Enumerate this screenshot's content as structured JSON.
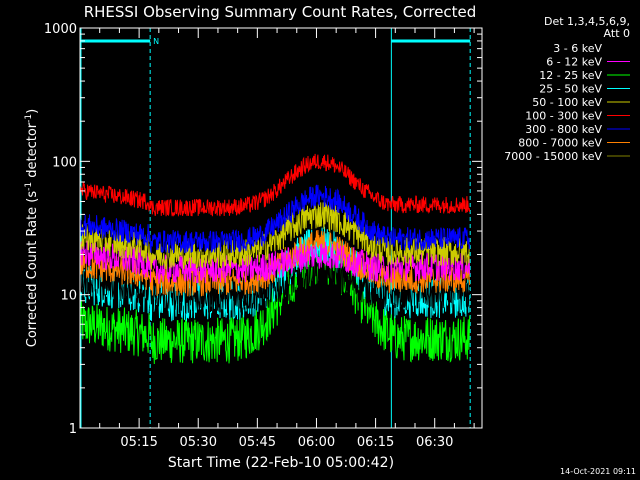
{
  "chart_data": {
    "type": "line",
    "title": "RHESSI Observing Summary Count Rates, Corrected",
    "xlabel": "Start Time (22-Feb-10 05:00:42)",
    "ylabel_main": "Corrected Count Rate (s",
    "ylabel_sup1": "-1",
    "ylabel_mid": " detector",
    "ylabel_sup2": "-1",
    "ylabel_end": ")",
    "yscale": "log",
    "ylim": [
      1,
      1000
    ],
    "xlim_minutes": [
      0,
      102
    ],
    "y_ticks": [
      {
        "v": 1,
        "label": "1"
      },
      {
        "v": 10,
        "label": "10"
      },
      {
        "v": 100,
        "label": "100"
      },
      {
        "v": 1000,
        "label": "1000"
      }
    ],
    "x_ticks": [
      {
        "t": 15,
        "label": "05:15"
      },
      {
        "t": 30,
        "label": "05:30"
      },
      {
        "t": 45,
        "label": "05:45"
      },
      {
        "t": 60,
        "label": "06:00"
      },
      {
        "t": 75,
        "label": "06:15"
      },
      {
        "t": 90,
        "label": "06:30"
      }
    ],
    "legend_header": [
      "Det 1,3,4,5,6,9,",
      "Att 0"
    ],
    "legend_position": "right",
    "night_marker": "N",
    "night_intervals_minutes": [
      [
        0,
        17.8
      ],
      [
        79,
        99
      ]
    ],
    "vertical_dashed_minutes": [
      17.8,
      99
    ],
    "vertical_solid_minutes": [
      79
    ],
    "series": [
      {
        "name": "3 - 6 keV",
        "color": "#000000",
        "base": 9.8,
        "peak": 14.5,
        "noise": 0.06
      },
      {
        "name": "6 - 12 keV",
        "color": "#ff00ff",
        "base": 15.5,
        "peak": 20,
        "noise": 0.05
      },
      {
        "name": "12 - 25 keV",
        "color": "#00ff00",
        "base": 4.5,
        "peak": 18,
        "noise": 0.08
      },
      {
        "name": "25 - 50 keV",
        "color": "#00ffff",
        "base": 9,
        "peak": 23,
        "noise": 0.07
      },
      {
        "name": "50 - 100 keV",
        "color": "#cccc00",
        "base": 20,
        "peak": 40,
        "noise": 0.05
      },
      {
        "name": "100 - 300 keV",
        "color": "#ff0000",
        "base": 45,
        "peak": 100,
        "noise": 0.03
      },
      {
        "name": "300 - 800 keV",
        "color": "#0000ff",
        "base": 25,
        "peak": 55,
        "noise": 0.04
      },
      {
        "name": "800 - 7000 keV",
        "color": "#ff8000",
        "base": 12.5,
        "peak": 24,
        "noise": 0.05
      },
      {
        "name": "7000 - 15000 keV",
        "color": "#808000",
        "base": null,
        "peak": null,
        "noise": 0
      }
    ],
    "footer_date": "14-Oct-2021 09:11"
  }
}
